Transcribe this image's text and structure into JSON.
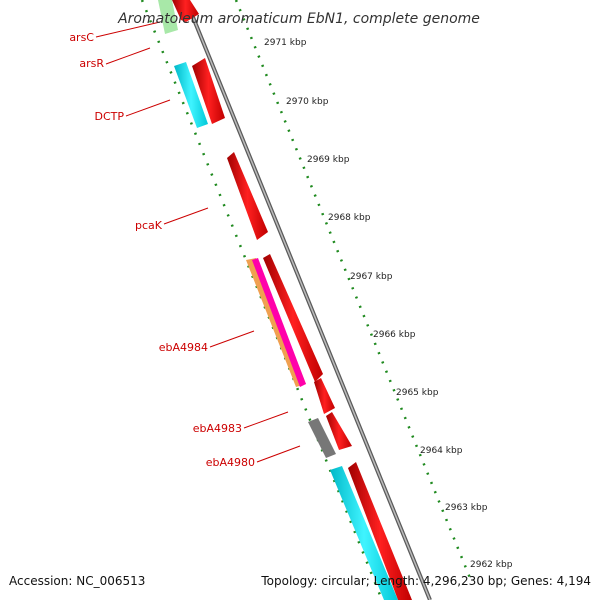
{
  "title": "Aromatoleum aromaticum EbN1, complete genome",
  "footer": {
    "accession": "Accession: NC_006513",
    "topology": "Topology: circular; Length: 4,296,230 bp; Genes: 4,194"
  },
  "scale_labels": [
    "2971 kbp",
    "2970 kbp",
    "2969 kbp",
    "2968 kbp",
    "2967 kbp",
    "2966 kbp",
    "2965 kbp",
    "2964 kbp",
    "2963 kbp",
    "2962 kbp"
  ],
  "genes": [
    {
      "name": "arsC",
      "color": "#cc0000"
    },
    {
      "name": "arsR",
      "color": "#cc0000"
    },
    {
      "name": "DCTP",
      "color": "#cc0000"
    },
    {
      "name": "pcaK",
      "color": "#cc0000"
    },
    {
      "name": "ebA4984",
      "color": "#cc0000"
    },
    {
      "name": "ebA4983",
      "color": "#cc0000"
    },
    {
      "name": "ebA4980",
      "color": "#cc0000"
    }
  ],
  "colors": {
    "forward_cds": "#ff0000",
    "cyan": "#00e5ee",
    "green": "#99e699",
    "gray": "#777777",
    "backbone": "#999999",
    "ticks": "#1f8a1f"
  }
}
